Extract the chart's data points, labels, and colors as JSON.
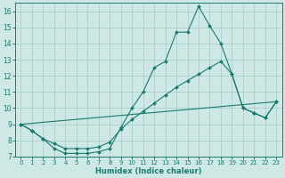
{
  "xlabel": "Humidex (Indice chaleur)",
  "background_color": "#cde8e5",
  "grid_color": "#aacfcc",
  "line_color": "#1a7a6e",
  "xlim": [
    -0.5,
    23.5
  ],
  "ylim": [
    7,
    16.5
  ],
  "xticks": [
    0,
    1,
    2,
    3,
    4,
    5,
    6,
    7,
    8,
    9,
    10,
    11,
    12,
    13,
    14,
    15,
    16,
    17,
    18,
    19,
    20,
    21,
    22,
    23
  ],
  "yticks": [
    7,
    8,
    9,
    10,
    11,
    12,
    13,
    14,
    15,
    16
  ],
  "line1_x": [
    0,
    1,
    2,
    3,
    4,
    5,
    6,
    7,
    8,
    9,
    10,
    11,
    12,
    13,
    14,
    15,
    16,
    17,
    18,
    19,
    20,
    21,
    22,
    23
  ],
  "line1_y": [
    9.0,
    8.6,
    8.1,
    7.5,
    7.2,
    7.2,
    7.2,
    7.3,
    7.5,
    8.8,
    10.0,
    11.0,
    12.5,
    12.9,
    14.7,
    14.7,
    16.3,
    15.1,
    14.0,
    12.1,
    10.0,
    9.7,
    9.4,
    10.4
  ],
  "line2_x": [
    0,
    1,
    2,
    3,
    4,
    5,
    6,
    7,
    8,
    9,
    10,
    11,
    12,
    13,
    14,
    15,
    16,
    17,
    18,
    19,
    20,
    21,
    22,
    23
  ],
  "line2_y": [
    9.0,
    8.6,
    8.1,
    7.8,
    7.5,
    7.5,
    7.5,
    7.6,
    7.9,
    8.7,
    9.3,
    9.8,
    10.3,
    10.8,
    11.3,
    11.7,
    12.1,
    12.5,
    12.9,
    12.1,
    10.0,
    9.7,
    9.4,
    10.4
  ],
  "line3_x": [
    0,
    23
  ],
  "line3_y": [
    9.0,
    10.4
  ]
}
